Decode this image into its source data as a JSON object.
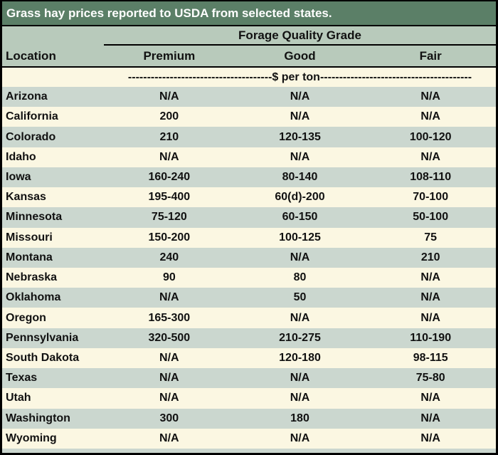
{
  "colors": {
    "title_bar_bg": "#5b7f67",
    "title_bar_fg": "#ffffff",
    "header_bg": "#b8cabb",
    "row_alt_bg": "#cbd7cf",
    "row_bg": "#fbf7e2",
    "border": "#000000",
    "text": "#111111"
  },
  "chart_data": {
    "type": "table",
    "title": "Grass hay prices reported to USDA from selected states.",
    "group_header": "Forage Quality Grade",
    "columns": [
      "Location",
      "Premium",
      "Good",
      "Fair"
    ],
    "units_label": "$ per ton",
    "units_row_text": "--------------------------------------$ per ton----------------------------------------",
    "rows": [
      {
        "location": "Arizona",
        "premium": "N/A",
        "good": "N/A",
        "fair": "N/A"
      },
      {
        "location": "California",
        "premium": "200",
        "good": "N/A",
        "fair": "N/A"
      },
      {
        "location": "Colorado",
        "premium": "210",
        "good": "120-135",
        "fair": "100-120"
      },
      {
        "location": "Idaho",
        "premium": "N/A",
        "good": "N/A",
        "fair": "N/A"
      },
      {
        "location": "Iowa",
        "premium": "160-240",
        "good": "80-140",
        "fair": "108-110"
      },
      {
        "location": "Kansas",
        "premium": "195-400",
        "good": "60(d)-200",
        "fair": "70-100"
      },
      {
        "location": "Minnesota",
        "premium": "75-120",
        "good": "60-150",
        "fair": "50-100"
      },
      {
        "location": "Missouri",
        "premium": "150-200",
        "good": "100-125",
        "fair": "75"
      },
      {
        "location": "Montana",
        "premium": "240",
        "good": "N/A",
        "fair": "210"
      },
      {
        "location": "Nebraska",
        "premium": "90",
        "good": "80",
        "fair": "N/A"
      },
      {
        "location": "Oklahoma",
        "premium": "N/A",
        "good": "50",
        "fair": "N/A"
      },
      {
        "location": "Oregon",
        "premium": "165-300",
        "good": "N/A",
        "fair": "N/A"
      },
      {
        "location": "Pennsylvania",
        "premium": "320-500",
        "good": "210-275",
        "fair": "110-190"
      },
      {
        "location": "South Dakota",
        "premium": "N/A",
        "good": "120-180",
        "fair": "98-115"
      },
      {
        "location": "Texas",
        "premium": "N/A",
        "good": "N/A",
        "fair": "75-80"
      },
      {
        "location": "Utah",
        "premium": "N/A",
        "good": "N/A",
        "fair": "N/A"
      },
      {
        "location": "Washington",
        "premium": "300",
        "good": "180",
        "fair": "N/A"
      },
      {
        "location": "Wyoming",
        "premium": "N/A",
        "good": "N/A",
        "fair": "N/A"
      }
    ]
  }
}
